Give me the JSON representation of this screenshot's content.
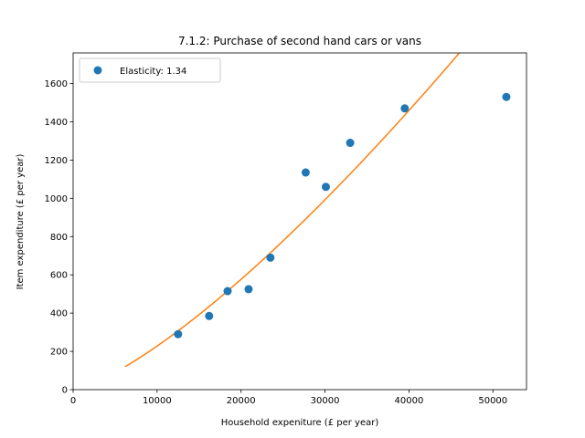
{
  "chart_data": {
    "type": "scatter",
    "title": "7.1.2: Purchase of second hand cars or vans",
    "xlabel": "Household expeniture (£ per year)",
    "ylabel": "Item expenditure (£ per year)",
    "xlim": [
      0,
      54000
    ],
    "ylim": [
      0,
      1760
    ],
    "xticks": [
      0,
      10000,
      20000,
      30000,
      40000,
      50000
    ],
    "yticks": [
      0,
      200,
      400,
      600,
      800,
      1000,
      1200,
      1400,
      1600
    ],
    "grid": false,
    "legend_position": "top-left",
    "series": [
      {
        "name": "Elasticity: 1.34",
        "kind": "points",
        "color": "#1f77b4",
        "x": [
          12500,
          16200,
          18400,
          20900,
          23500,
          27700,
          30100,
          33000,
          39500,
          51600
        ],
        "y": [
          290,
          385,
          515,
          525,
          690,
          1135,
          1060,
          1290,
          1470,
          1530
        ]
      },
      {
        "kind": "fit-curve",
        "color": "#ff7f0e",
        "elasticity": 1.34,
        "x_start": 6200,
        "y_at_x_start": 120
      }
    ]
  }
}
